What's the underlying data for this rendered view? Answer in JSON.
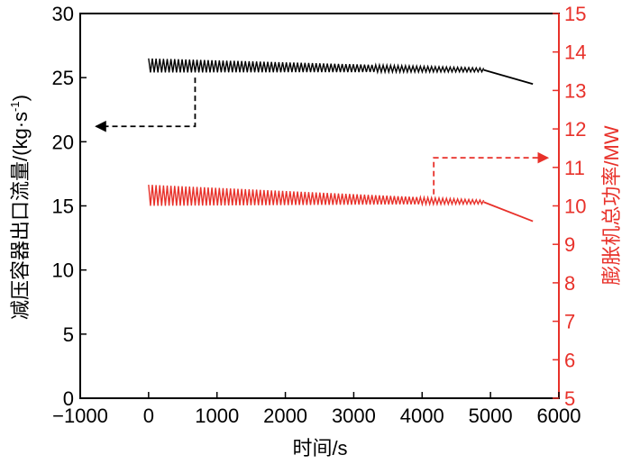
{
  "chart_data": {
    "type": "line",
    "xlabel": "时间/s",
    "ylabel_left": "减压容器出口流量/(kg·s",
    "ylabel_left_sup": "-1",
    "ylabel_left_tail": ")",
    "ylabel_right": "膨胀机总功率/MW",
    "xlim": [
      -1000,
      6000
    ],
    "ylim_left": [
      0,
      30
    ],
    "ylim_right": [
      5,
      15
    ],
    "x_ticks": [
      -1000,
      0,
      1000,
      2000,
      3000,
      4000,
      5000,
      6000
    ],
    "x_tick_labels": [
      "−1000",
      "0",
      "1000",
      "2000",
      "3000",
      "4000",
      "5000",
      "6000"
    ],
    "y_left_ticks": [
      0,
      5,
      10,
      15,
      20,
      25,
      30
    ],
    "y_left_tick_labels": [
      "0",
      "5",
      "10",
      "15",
      "20",
      "25",
      "30"
    ],
    "y_right_ticks": [
      5,
      6,
      7,
      8,
      9,
      10,
      11,
      12,
      13,
      14,
      15
    ],
    "y_right_tick_labels": [
      "5",
      "6",
      "7",
      "8",
      "9",
      "10",
      "11",
      "12",
      "13",
      "14",
      "15"
    ],
    "grid": false,
    "colors": {
      "left_axis": "#000000",
      "right_axis": "#e8312a",
      "flow": "#000000",
      "power": "#e8312a"
    },
    "series": [
      {
        "axis": "left",
        "color": "#000000",
        "oscillating_band": {
          "x": [
            0,
            4900
          ],
          "upper": [
            26.5,
            25.75
          ],
          "lower": [
            25.4,
            25.45
          ]
        },
        "tail": {
          "x": [
            4900,
            5620
          ],
          "y": [
            25.6,
            24.5
          ]
        }
      },
      {
        "axis": "right",
        "color": "#e8312a",
        "oscillating_band": {
          "x": [
            0,
            4900
          ],
          "upper": [
            10.55,
            10.15
          ],
          "lower": [
            10.0,
            10.05
          ]
        },
        "tail": {
          "x": [
            4900,
            5620
          ],
          "y": [
            10.1,
            9.6
          ]
        }
      }
    ],
    "annotations": [
      {
        "type": "dashed-arrow",
        "color": "#000000",
        "points": [
          [
            680,
            25
          ],
          [
            680,
            21.2
          ],
          [
            -770,
            21.2
          ]
        ],
        "axis": "left"
      },
      {
        "type": "dashed-arrow",
        "color": "#e8312a",
        "points": [
          [
            4170,
            10.3
          ],
          [
            4170,
            11.25
          ],
          [
            5840,
            11.25
          ]
        ],
        "axis": "right"
      }
    ]
  }
}
